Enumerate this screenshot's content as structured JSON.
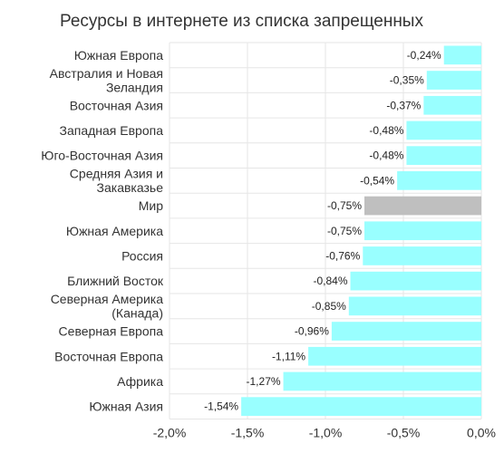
{
  "chart_data": {
    "type": "bar",
    "orientation": "horizontal",
    "title": "Ресурсы в интернете из списка запрещенных",
    "xlabel": "",
    "ylabel": "",
    "xlim": [
      -2.0,
      0.0
    ],
    "grid": true,
    "categories": [
      [
        "Южная Европа"
      ],
      [
        "Австралия и Новая",
        "Зеландия"
      ],
      [
        "Восточная Азия"
      ],
      [
        "Западная Европа"
      ],
      [
        "Юго-Восточная Азия"
      ],
      [
        "Средняя Азия и",
        "Закавказье"
      ],
      [
        "Мир"
      ],
      [
        "Южная Америка"
      ],
      [
        "Россия"
      ],
      [
        "Ближний Восток"
      ],
      [
        "Северная Америка",
        "(Канада)"
      ],
      [
        "Северная Европа"
      ],
      [
        "Восточная Европа"
      ],
      [
        "Африка"
      ],
      [
        "Южная Азия"
      ]
    ],
    "values": [
      -0.24,
      -0.35,
      -0.37,
      -0.48,
      -0.48,
      -0.54,
      -0.75,
      -0.75,
      -0.76,
      -0.84,
      -0.85,
      -0.96,
      -1.11,
      -1.27,
      -1.54
    ],
    "value_labels": [
      "-0,24%",
      "-0,35%",
      "-0,37%",
      "-0,48%",
      "-0,48%",
      "-0,54%",
      "-0,75%",
      "-0,75%",
      "-0,76%",
      "-0,84%",
      "-0,85%",
      "-0,96%",
      "-1,11%",
      "-1,27%",
      "-1,54%"
    ],
    "highlight_index": 6,
    "xticks": [
      -2.0,
      -1.5,
      -1.0,
      -0.5,
      0.0
    ],
    "xtick_labels": [
      "-2,0%",
      "-1,5%",
      "-1,0%",
      "-0,5%",
      "0,0%"
    ],
    "colors": {
      "bar": "#99ffff",
      "highlight": "#bfbfbf",
      "grid": "#e6e6e6",
      "text": "#333333"
    }
  }
}
